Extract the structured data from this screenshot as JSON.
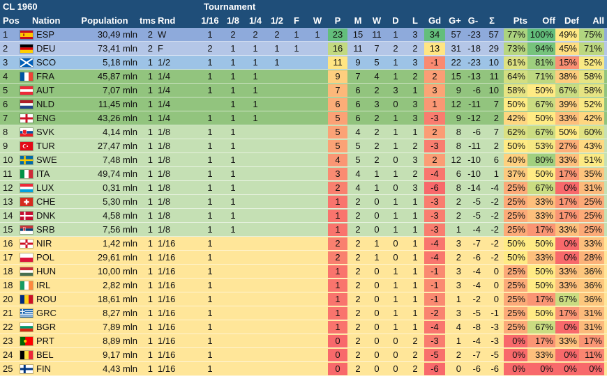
{
  "title": "CL 1960",
  "group_header": "Tournament",
  "columns": {
    "pos": "Pos",
    "nation": "Nation",
    "population": "Population",
    "tms": "tms",
    "rnd": "Rnd",
    "r16": "1/16",
    "r8": "1/8",
    "r4": "1/4",
    "r2": "1/2",
    "f": "F",
    "w": "W",
    "p": "P",
    "m": "M",
    "wins": "W",
    "d": "D",
    "l": "L",
    "gd": "Gd",
    "gplus": "G+",
    "gminus": "G-",
    "sigma": "Σ",
    "pts": "Pts",
    "off": "Off",
    "def": "Def",
    "all": "All"
  },
  "rows": [
    {
      "pos": "1",
      "flag": "spain",
      "nation": "ESP",
      "population": "30,49 mln",
      "tms": "2",
      "rnd": "W",
      "r16": "1",
      "r8": "2",
      "r4": "2",
      "r2": "2",
      "f": "1",
      "w": "1",
      "p": "23",
      "m": "15",
      "wins": "11",
      "d": "1",
      "l": "3",
      "gd": "34",
      "gplus": "57",
      "gminus": "-23",
      "sigma": "57",
      "pts": "77%",
      "off": "100%",
      "def": "49%",
      "all": "75%"
    },
    {
      "pos": "2",
      "flag": "germany",
      "nation": "DEU",
      "population": "73,41 mln",
      "tms": "2",
      "rnd": "F",
      "r16": "2",
      "r8": "1",
      "r4": "1",
      "r2": "1",
      "f": "1",
      "w": "",
      "p": "16",
      "m": "11",
      "wins": "7",
      "d": "2",
      "l": "2",
      "gd": "13",
      "gplus": "31",
      "gminus": "-18",
      "sigma": "29",
      "pts": "73%",
      "off": "94%",
      "def": "45%",
      "all": "71%"
    },
    {
      "pos": "3",
      "flag": "scotland",
      "nation": "SCO",
      "population": "5,18 mln",
      "tms": "1",
      "rnd": "1/2",
      "r16": "1",
      "r8": "1",
      "r4": "1",
      "r2": "1",
      "f": "",
      "w": "",
      "p": "11",
      "m": "9",
      "wins": "5",
      "d": "1",
      "l": "3",
      "gd": "-1",
      "gplus": "22",
      "gminus": "-23",
      "sigma": "10",
      "pts": "61%",
      "off": "81%",
      "def": "15%",
      "all": "52%"
    },
    {
      "pos": "4",
      "flag": "france",
      "nation": "FRA",
      "population": "45,87 mln",
      "tms": "1",
      "rnd": "1/4",
      "r16": "1",
      "r8": "1",
      "r4": "1",
      "r2": "",
      "f": "",
      "w": "",
      "p": "9",
      "m": "7",
      "wins": "4",
      "d": "1",
      "l": "2",
      "gd": "2",
      "gplus": "15",
      "gminus": "-13",
      "sigma": "11",
      "pts": "64%",
      "off": "71%",
      "def": "38%",
      "all": "58%"
    },
    {
      "pos": "5",
      "flag": "austria",
      "nation": "AUT",
      "population": "7,07 mln",
      "tms": "1",
      "rnd": "1/4",
      "r16": "1",
      "r8": "1",
      "r4": "1",
      "r2": "",
      "f": "",
      "w": "",
      "p": "7",
      "m": "6",
      "wins": "2",
      "d": "3",
      "l": "1",
      "gd": "3",
      "gplus": "9",
      "gminus": "-6",
      "sigma": "10",
      "pts": "58%",
      "off": "50%",
      "def": "67%",
      "all": "58%"
    },
    {
      "pos": "6",
      "flag": "netherlands",
      "nation": "NLD",
      "population": "11,45 mln",
      "tms": "1",
      "rnd": "1/4",
      "r16": "",
      "r8": "1",
      "r4": "1",
      "r2": "",
      "f": "",
      "w": "",
      "p": "6",
      "m": "6",
      "wins": "3",
      "d": "0",
      "l": "3",
      "gd": "1",
      "gplus": "12",
      "gminus": "-11",
      "sigma": "7",
      "pts": "50%",
      "off": "67%",
      "def": "39%",
      "all": "52%"
    },
    {
      "pos": "7",
      "flag": "england",
      "nation": "ENG",
      "population": "43,26 mln",
      "tms": "1",
      "rnd": "1/4",
      "r16": "1",
      "r8": "1",
      "r4": "1",
      "r2": "",
      "f": "",
      "w": "",
      "p": "5",
      "m": "6",
      "wins": "2",
      "d": "1",
      "l": "3",
      "gd": "-3",
      "gplus": "9",
      "gminus": "-12",
      "sigma": "2",
      "pts": "42%",
      "off": "50%",
      "def": "33%",
      "all": "42%"
    },
    {
      "pos": "8",
      "flag": "slovakia",
      "nation": "SVK",
      "population": "4,14 mln",
      "tms": "1",
      "rnd": "1/8",
      "r16": "1",
      "r8": "1",
      "r4": "",
      "r2": "",
      "f": "",
      "w": "",
      "p": "5",
      "m": "4",
      "wins": "2",
      "d": "1",
      "l": "1",
      "gd": "2",
      "gplus": "8",
      "gminus": "-6",
      "sigma": "7",
      "pts": "62%",
      "off": "67%",
      "def": "50%",
      "all": "60%"
    },
    {
      "pos": "9",
      "flag": "turkey",
      "nation": "TUR",
      "population": "27,47 mln",
      "tms": "1",
      "rnd": "1/8",
      "r16": "1",
      "r8": "1",
      "r4": "",
      "r2": "",
      "f": "",
      "w": "",
      "p": "5",
      "m": "5",
      "wins": "2",
      "d": "1",
      "l": "2",
      "gd": "-3",
      "gplus": "8",
      "gminus": "-11",
      "sigma": "2",
      "pts": "50%",
      "off": "53%",
      "def": "27%",
      "all": "43%"
    },
    {
      "pos": "10",
      "flag": "sweden",
      "nation": "SWE",
      "population": "7,48 mln",
      "tms": "1",
      "rnd": "1/8",
      "r16": "1",
      "r8": "1",
      "r4": "",
      "r2": "",
      "f": "",
      "w": "",
      "p": "4",
      "m": "5",
      "wins": "2",
      "d": "0",
      "l": "3",
      "gd": "2",
      "gplus": "12",
      "gminus": "-10",
      "sigma": "6",
      "pts": "40%",
      "off": "80%",
      "def": "33%",
      "all": "51%"
    },
    {
      "pos": "11",
      "flag": "italy",
      "nation": "ITA",
      "population": "49,74 mln",
      "tms": "1",
      "rnd": "1/8",
      "r16": "1",
      "r8": "1",
      "r4": "",
      "r2": "",
      "f": "",
      "w": "",
      "p": "3",
      "m": "4",
      "wins": "1",
      "d": "1",
      "l": "2",
      "gd": "-4",
      "gplus": "6",
      "gminus": "-10",
      "sigma": "1",
      "pts": "37%",
      "off": "50%",
      "def": "17%",
      "all": "35%"
    },
    {
      "pos": "12",
      "flag": "luxembourg",
      "nation": "LUX",
      "population": "0,31 mln",
      "tms": "1",
      "rnd": "1/8",
      "r16": "1",
      "r8": "1",
      "r4": "",
      "r2": "",
      "f": "",
      "w": "",
      "p": "2",
      "m": "4",
      "wins": "1",
      "d": "0",
      "l": "3",
      "gd": "-6",
      "gplus": "8",
      "gminus": "-14",
      "sigma": "-4",
      "pts": "25%",
      "off": "67%",
      "def": "0%",
      "all": "31%"
    },
    {
      "pos": "13",
      "flag": "switzerland",
      "nation": "CHE",
      "population": "5,30 mln",
      "tms": "1",
      "rnd": "1/8",
      "r16": "1",
      "r8": "1",
      "r4": "",
      "r2": "",
      "f": "",
      "w": "",
      "p": "1",
      "m": "2",
      "wins": "0",
      "d": "1",
      "l": "1",
      "gd": "-3",
      "gplus": "2",
      "gminus": "-5",
      "sigma": "-2",
      "pts": "25%",
      "off": "33%",
      "def": "17%",
      "all": "25%"
    },
    {
      "pos": "14",
      "flag": "denmark",
      "nation": "DNK",
      "population": "4,58 mln",
      "tms": "1",
      "rnd": "1/8",
      "r16": "1",
      "r8": "1",
      "r4": "",
      "r2": "",
      "f": "",
      "w": "",
      "p": "1",
      "m": "2",
      "wins": "0",
      "d": "1",
      "l": "1",
      "gd": "-3",
      "gplus": "2",
      "gminus": "-5",
      "sigma": "-2",
      "pts": "25%",
      "off": "33%",
      "def": "17%",
      "all": "25%"
    },
    {
      "pos": "15",
      "flag": "serbia",
      "nation": "SRB",
      "population": "7,56 mln",
      "tms": "1",
      "rnd": "1/8",
      "r16": "1",
      "r8": "1",
      "r4": "",
      "r2": "",
      "f": "",
      "w": "",
      "p": "1",
      "m": "2",
      "wins": "0",
      "d": "1",
      "l": "1",
      "gd": "-3",
      "gplus": "1",
      "gminus": "-4",
      "sigma": "-2",
      "pts": "25%",
      "off": "17%",
      "def": "33%",
      "all": "25%"
    },
    {
      "pos": "16",
      "flag": "nireland",
      "nation": "NIR",
      "population": "1,42 mln",
      "tms": "1",
      "rnd": "1/16",
      "r16": "1",
      "r8": "",
      "r4": "",
      "r2": "",
      "f": "",
      "w": "",
      "p": "2",
      "m": "2",
      "wins": "1",
      "d": "0",
      "l": "1",
      "gd": "-4",
      "gplus": "3",
      "gminus": "-7",
      "sigma": "-2",
      "pts": "50%",
      "off": "50%",
      "def": "0%",
      "all": "33%"
    },
    {
      "pos": "17",
      "flag": "poland",
      "nation": "POL",
      "population": "29,61 mln",
      "tms": "1",
      "rnd": "1/16",
      "r16": "1",
      "r8": "",
      "r4": "",
      "r2": "",
      "f": "",
      "w": "",
      "p": "2",
      "m": "2",
      "wins": "1",
      "d": "0",
      "l": "1",
      "gd": "-4",
      "gplus": "2",
      "gminus": "-6",
      "sigma": "-2",
      "pts": "50%",
      "off": "33%",
      "def": "0%",
      "all": "28%"
    },
    {
      "pos": "18",
      "flag": "hungary",
      "nation": "HUN",
      "population": "10,00 mln",
      "tms": "1",
      "rnd": "1/16",
      "r16": "1",
      "r8": "",
      "r4": "",
      "r2": "",
      "f": "",
      "w": "",
      "p": "1",
      "m": "2",
      "wins": "0",
      "d": "1",
      "l": "1",
      "gd": "-1",
      "gplus": "3",
      "gminus": "-4",
      "sigma": "0",
      "pts": "25%",
      "off": "50%",
      "def": "33%",
      "all": "36%"
    },
    {
      "pos": "18",
      "flag": "ireland",
      "nation": "IRL",
      "population": "2,82 mln",
      "tms": "1",
      "rnd": "1/16",
      "r16": "1",
      "r8": "",
      "r4": "",
      "r2": "",
      "f": "",
      "w": "",
      "p": "1",
      "m": "2",
      "wins": "0",
      "d": "1",
      "l": "1",
      "gd": "-1",
      "gplus": "3",
      "gminus": "-4",
      "sigma": "0",
      "pts": "25%",
      "off": "50%",
      "def": "33%",
      "all": "36%"
    },
    {
      "pos": "20",
      "flag": "romania",
      "nation": "ROU",
      "population": "18,61 mln",
      "tms": "1",
      "rnd": "1/16",
      "r16": "1",
      "r8": "",
      "r4": "",
      "r2": "",
      "f": "",
      "w": "",
      "p": "1",
      "m": "2",
      "wins": "0",
      "d": "1",
      "l": "1",
      "gd": "-1",
      "gplus": "1",
      "gminus": "-2",
      "sigma": "0",
      "pts": "25%",
      "off": "17%",
      "def": "67%",
      "all": "36%"
    },
    {
      "pos": "21",
      "flag": "greece",
      "nation": "GRC",
      "population": "8,27 mln",
      "tms": "1",
      "rnd": "1/16",
      "r16": "1",
      "r8": "",
      "r4": "",
      "r2": "",
      "f": "",
      "w": "",
      "p": "1",
      "m": "2",
      "wins": "0",
      "d": "1",
      "l": "1",
      "gd": "-2",
      "gplus": "3",
      "gminus": "-5",
      "sigma": "-1",
      "pts": "25%",
      "off": "50%",
      "def": "17%",
      "all": "31%"
    },
    {
      "pos": "22",
      "flag": "bulgaria",
      "nation": "BGR",
      "population": "7,89 mln",
      "tms": "1",
      "rnd": "1/16",
      "r16": "1",
      "r8": "",
      "r4": "",
      "r2": "",
      "f": "",
      "w": "",
      "p": "1",
      "m": "2",
      "wins": "0",
      "d": "1",
      "l": "1",
      "gd": "-4",
      "gplus": "4",
      "gminus": "-8",
      "sigma": "-3",
      "pts": "25%",
      "off": "67%",
      "def": "0%",
      "all": "31%"
    },
    {
      "pos": "23",
      "flag": "portugal",
      "nation": "PRT",
      "population": "8,89 mln",
      "tms": "1",
      "rnd": "1/16",
      "r16": "1",
      "r8": "",
      "r4": "",
      "r2": "",
      "f": "",
      "w": "",
      "p": "0",
      "m": "2",
      "wins": "0",
      "d": "0",
      "l": "2",
      "gd": "-3",
      "gplus": "1",
      "gminus": "-4",
      "sigma": "-3",
      "pts": "0%",
      "off": "17%",
      "def": "33%",
      "all": "17%"
    },
    {
      "pos": "24",
      "flag": "belgium",
      "nation": "BEL",
      "population": "9,17 mln",
      "tms": "1",
      "rnd": "1/16",
      "r16": "1",
      "r8": "",
      "r4": "",
      "r2": "",
      "f": "",
      "w": "",
      "p": "0",
      "m": "2",
      "wins": "0",
      "d": "0",
      "l": "2",
      "gd": "-5",
      "gplus": "2",
      "gminus": "-7",
      "sigma": "-5",
      "pts": "0%",
      "off": "33%",
      "def": "0%",
      "all": "11%"
    },
    {
      "pos": "25",
      "flag": "finland",
      "nation": "FIN",
      "population": "4,43 mln",
      "tms": "1",
      "rnd": "1/16",
      "r16": "1",
      "r8": "",
      "r4": "",
      "r2": "",
      "f": "",
      "w": "",
      "p": "0",
      "m": "2",
      "wins": "0",
      "d": "0",
      "l": "2",
      "gd": "-6",
      "gplus": "0",
      "gminus": "-6",
      "sigma": "-6",
      "pts": "0%",
      "off": "0%",
      "def": "0%",
      "all": "0%"
    }
  ],
  "colors": {
    "header": "#1f4e79",
    "row_gold": "#8eaadb",
    "row_silver": "#b4c6e7",
    "row_semi": "#9dc3e6",
    "row_quarter": "#92c47e",
    "row_eighth": "#c5e0b4",
    "row_sixteenth": "#ffe699",
    "scale_low": "#f8696b",
    "scale_mid": "#ffeb84",
    "scale_high": "#63be7b"
  }
}
